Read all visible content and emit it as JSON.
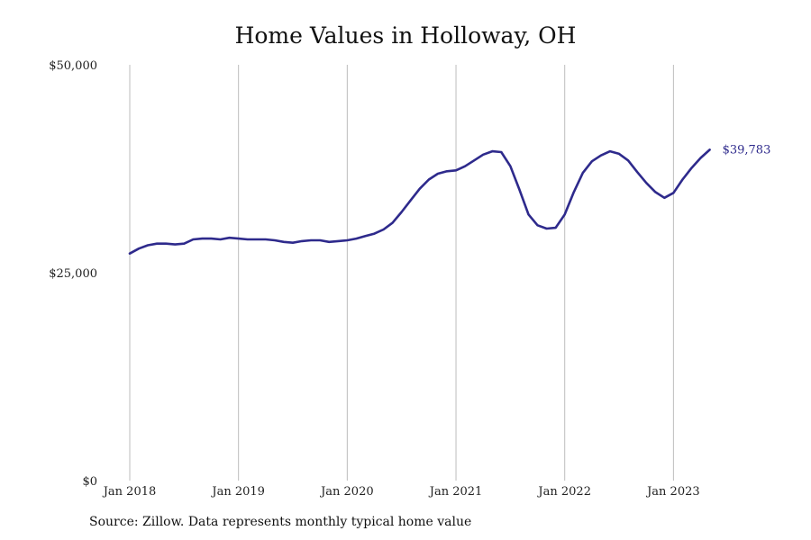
{
  "chart_data": {
    "type": "line",
    "title": "Home Values in Holloway, OH",
    "source": "Source: Zillow. Data represents monthly typical home value",
    "xlabel": "",
    "ylabel": "",
    "ylim": [
      0,
      50000
    ],
    "xlim": [
      "2018-01",
      "2023-12"
    ],
    "y_ticks": [
      {
        "value": 0,
        "label": "$0"
      },
      {
        "value": 25000,
        "label": "$25,000"
      },
      {
        "value": 50000,
        "label": "$50,000"
      }
    ],
    "x_ticks": [
      {
        "value": "2018-01",
        "label": "Jan 2018"
      },
      {
        "value": "2019-01",
        "label": "Jan 2019"
      },
      {
        "value": "2020-01",
        "label": "Jan 2020"
      },
      {
        "value": "2021-01",
        "label": "Jan 2021"
      },
      {
        "value": "2022-01",
        "label": "Jan 2022"
      },
      {
        "value": "2023-01",
        "label": "Jan 2023"
      }
    ],
    "grid": {
      "vertical": true,
      "horizontal": false
    },
    "line_color": "#2e2a8c",
    "grid_color": "#bdbdbd",
    "last_value_label": "$39,783",
    "series": [
      {
        "x": [
          "2018-01",
          "2018-02",
          "2018-03",
          "2018-04",
          "2018-05",
          "2018-06",
          "2018-07",
          "2018-08",
          "2018-09",
          "2018-10",
          "2018-11",
          "2018-12",
          "2019-01",
          "2019-02",
          "2019-03",
          "2019-04",
          "2019-05",
          "2019-06",
          "2019-07",
          "2019-08",
          "2019-09",
          "2019-10",
          "2019-11",
          "2019-12",
          "2020-01",
          "2020-02",
          "2020-03",
          "2020-04",
          "2020-05",
          "2020-06",
          "2020-07",
          "2020-08",
          "2020-09",
          "2020-10",
          "2020-11",
          "2020-12",
          "2021-01",
          "2021-02",
          "2021-03",
          "2021-04",
          "2021-05",
          "2021-06",
          "2021-07",
          "2021-08",
          "2021-09",
          "2021-10",
          "2021-11",
          "2021-12",
          "2022-01",
          "2022-02",
          "2022-03",
          "2022-04",
          "2022-05",
          "2022-06",
          "2022-07",
          "2022-08",
          "2022-09",
          "2022-10",
          "2022-11",
          "2022-12",
          "2023-01",
          "2023-02",
          "2023-03",
          "2023-04",
          "2023-05"
        ],
        "values": [
          27300,
          27900,
          28300,
          28500,
          28500,
          28400,
          28500,
          29000,
          29100,
          29100,
          29000,
          29200,
          29100,
          29000,
          29000,
          29000,
          28900,
          28700,
          28600,
          28800,
          28900,
          28900,
          28700,
          28800,
          28900,
          29100,
          29400,
          29700,
          30200,
          31000,
          32300,
          33700,
          35100,
          36200,
          36900,
          37200,
          37300,
          37800,
          38500,
          39200,
          39600,
          39500,
          37800,
          35000,
          32000,
          30700,
          30300,
          30400,
          32000,
          34700,
          37000,
          38400,
          39100,
          39600,
          39300,
          38500,
          37100,
          35800,
          34700,
          34000,
          34600,
          36200,
          37600,
          38800,
          39783
        ]
      }
    ]
  }
}
